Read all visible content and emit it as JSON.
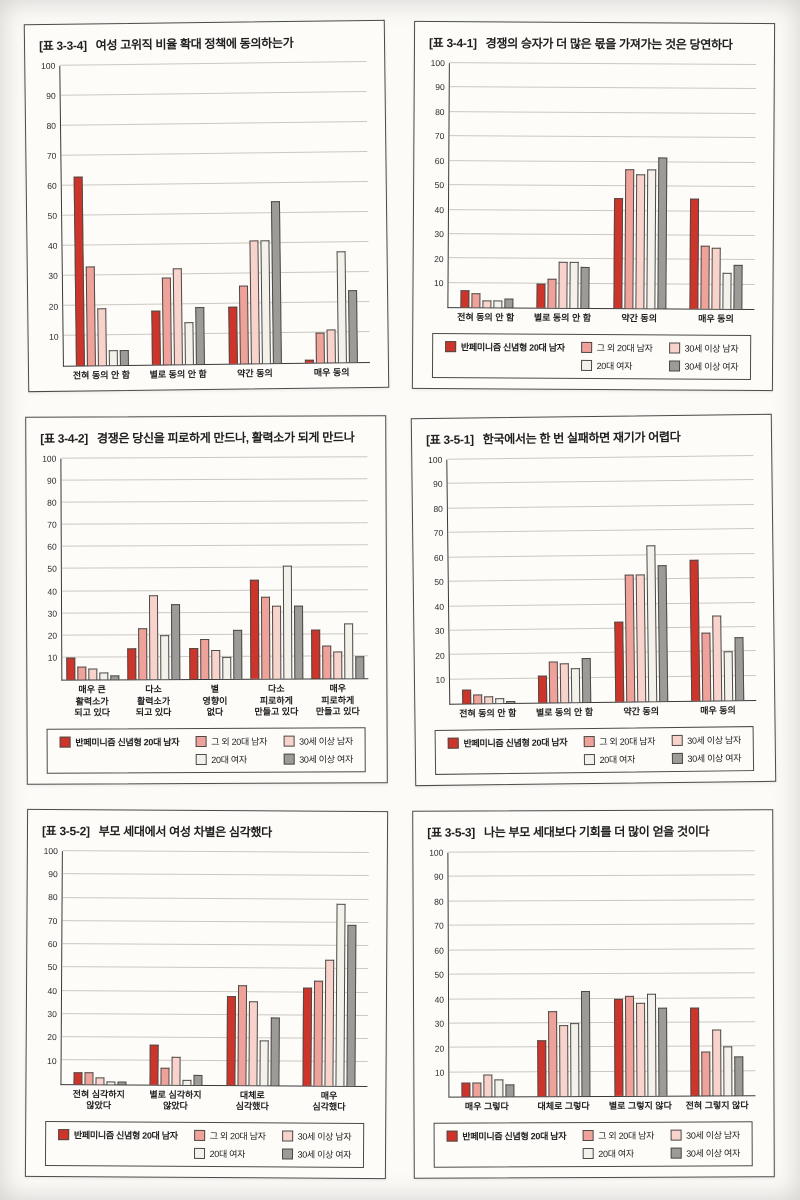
{
  "page": {
    "type": "scanned-book-page",
    "background": "#fdfcf9"
  },
  "series_style": [
    {
      "name": "반페미니즘 신념형 20대 남자",
      "color": "#ce352a",
      "bold": true
    },
    {
      "name": "그 외 20대 남자",
      "color": "#efa29a",
      "bold": false
    },
    {
      "name": "30세 이상 남자",
      "color": "#f8d3cc",
      "bold": false
    },
    {
      "name": "20대 여자",
      "color": "#f3f1ea",
      "bold": false
    },
    {
      "name": "30세 이상 여자",
      "color": "#9c9b97",
      "bold": false
    }
  ],
  "chart_data": [
    {
      "id": "3-3-4",
      "type": "bar",
      "title_tag": "[표 3-3-4]",
      "title": "여성 고위직 비율 확대 정책에 동의하는가",
      "categories": [
        "전혀 동의 안 함",
        "별로 동의 안 함",
        "약간 동의",
        "매우 동의"
      ],
      "series": [
        {
          "name": "반페미니즘 신념형 20대 남자",
          "values": [
            63,
            18,
            19,
            1
          ]
        },
        {
          "name": "그 외 20대 남자",
          "values": [
            33,
            29,
            26,
            10
          ]
        },
        {
          "name": "30세 이상 남자",
          "values": [
            19,
            32,
            41,
            11
          ]
        },
        {
          "name": "20대 여자",
          "values": [
            5,
            14,
            41,
            37
          ]
        },
        {
          "name": "30세 이상 여자",
          "values": [
            5,
            19,
            54,
            24
          ]
        }
      ],
      "ylim": [
        0,
        100
      ],
      "yticks": [
        10,
        20,
        30,
        40,
        50,
        60,
        70,
        80,
        90,
        100
      ],
      "grid": true,
      "legend_visible": false,
      "legend_position": "bottom"
    },
    {
      "id": "3-4-1",
      "type": "bar",
      "title_tag": "[표 3-4-1]",
      "title": "경쟁의 승자가 더 많은 몫을 가져가는 것은 당연하다",
      "categories": [
        "전혀 동의 안 함",
        "별로 동의 안 함",
        "약간 동의",
        "매우 동의"
      ],
      "series": [
        {
          "name": "반페미니즘 신념형 20대 남자",
          "values": [
            7,
            10,
            45,
            45
          ]
        },
        {
          "name": "그 외 20대 남자",
          "values": [
            6,
            12,
            57,
            26
          ]
        },
        {
          "name": "30세 이상 남자",
          "values": [
            3,
            19,
            55,
            25
          ]
        },
        {
          "name": "20대 여자",
          "values": [
            3,
            19,
            57,
            15
          ]
        },
        {
          "name": "30세 이상 여자",
          "values": [
            4,
            17,
            62,
            18
          ]
        }
      ],
      "ylim": [
        0,
        100
      ],
      "yticks": [
        10,
        20,
        30,
        40,
        50,
        60,
        70,
        80,
        90,
        100
      ],
      "grid": true,
      "legend_visible": true,
      "legend_position": "bottom"
    },
    {
      "id": "3-4-2",
      "type": "bar",
      "title_tag": "[표 3-4-2]",
      "title": "경쟁은 당신을 피로하게 만드나, 활력소가 되게 만드나",
      "categories": [
        "매우 큰\n활력소가\n되고 있다",
        "다소\n활력소가\n되고 있다",
        "별\n영향이\n없다",
        "다소\n피로하게\n만들고 있다",
        "매우\n피로하게\n만들고 있다"
      ],
      "series": [
        {
          "name": "반페미니즘 신념형 20대 남자",
          "values": [
            10,
            14,
            14,
            45,
            22
          ]
        },
        {
          "name": "그 외 20대 남자",
          "values": [
            6,
            23,
            18,
            37,
            15
          ]
        },
        {
          "name": "30세 이상 남자",
          "values": [
            5,
            38,
            13,
            33,
            12
          ]
        },
        {
          "name": "20대 여자",
          "values": [
            3,
            20,
            10,
            51,
            25
          ]
        },
        {
          "name": "30세 이상 여자",
          "values": [
            2,
            34,
            22,
            33,
            10
          ]
        }
      ],
      "ylim": [
        0,
        100
      ],
      "yticks": [
        10,
        20,
        30,
        40,
        50,
        60,
        70,
        80,
        90,
        100
      ],
      "grid": true,
      "legend_visible": true,
      "legend_position": "bottom"
    },
    {
      "id": "3-5-1",
      "type": "bar",
      "title_tag": "[표 3-5-1]",
      "title": "한국에서는 한 번 실패하면 재기가 어렵다",
      "categories": [
        "전혀 동의 안 함",
        "별로 동의 안 함",
        "약간 동의",
        "매우 동의"
      ],
      "series": [
        {
          "name": "반페미니즘 신념형 20대 남자",
          "values": [
            6,
            11,
            33,
            58
          ]
        },
        {
          "name": "그 외 20대 남자",
          "values": [
            4,
            17,
            52,
            28
          ]
        },
        {
          "name": "30세 이상 남자",
          "values": [
            3,
            16,
            52,
            35
          ]
        },
        {
          "name": "20대 여자",
          "values": [
            2,
            14,
            64,
            20
          ]
        },
        {
          "name": "30세 이상 여자",
          "values": [
            1,
            18,
            56,
            26
          ]
        }
      ],
      "ylim": [
        0,
        100
      ],
      "yticks": [
        10,
        20,
        30,
        40,
        50,
        60,
        70,
        80,
        90,
        100
      ],
      "grid": true,
      "legend_visible": true,
      "legend_position": "bottom"
    },
    {
      "id": "3-5-2",
      "type": "bar",
      "title_tag": "[표 3-5-2]",
      "title": "부모 세대에서 여성 차별은 심각했다",
      "categories": [
        "전혀 심각하지\n않았다",
        "별로 심각하지\n않았다",
        "대체로\n심각했다",
        "매우\n심각했다"
      ],
      "series": [
        {
          "name": "반페미니즘 신념형 20대 남자",
          "values": [
            5,
            17,
            38,
            42
          ]
        },
        {
          "name": "그 외 20대 남자",
          "values": [
            5,
            7,
            43,
            45
          ]
        },
        {
          "name": "30세 이상 남자",
          "values": [
            3,
            12,
            36,
            54
          ]
        },
        {
          "name": "20대 여자",
          "values": [
            1,
            2,
            19,
            78
          ]
        },
        {
          "name": "30세 이상 여자",
          "values": [
            1,
            4,
            29,
            69
          ]
        }
      ],
      "ylim": [
        0,
        100
      ],
      "yticks": [
        10,
        20,
        30,
        40,
        50,
        60,
        70,
        80,
        90,
        100
      ],
      "grid": true,
      "legend_visible": true,
      "legend_position": "bottom"
    },
    {
      "id": "3-5-3",
      "type": "bar",
      "title_tag": "[표 3-5-3]",
      "title": "나는 부모 세대보다 기회를 더 많이 얻을 것이다",
      "categories": [
        "매우 그렇다",
        "대체로 그렇다",
        "별로 그렇지 않다",
        "전혀 그렇지 않다"
      ],
      "series": [
        {
          "name": "반페미니즘 신념형 20대 남자",
          "values": [
            6,
            23,
            40,
            36
          ]
        },
        {
          "name": "그 외 20대 남자",
          "values": [
            6,
            35,
            41,
            18
          ]
        },
        {
          "name": "30세 이상 남자",
          "values": [
            9,
            29,
            38,
            27
          ]
        },
        {
          "name": "20대 여자",
          "values": [
            7,
            30,
            42,
            20
          ]
        },
        {
          "name": "30세 이상 여자",
          "values": [
            5,
            43,
            36,
            16
          ]
        }
      ],
      "ylim": [
        0,
        100
      ],
      "yticks": [
        10,
        20,
        30,
        40,
        50,
        60,
        70,
        80,
        90,
        100
      ],
      "grid": true,
      "legend_visible": true,
      "legend_position": "bottom"
    }
  ]
}
